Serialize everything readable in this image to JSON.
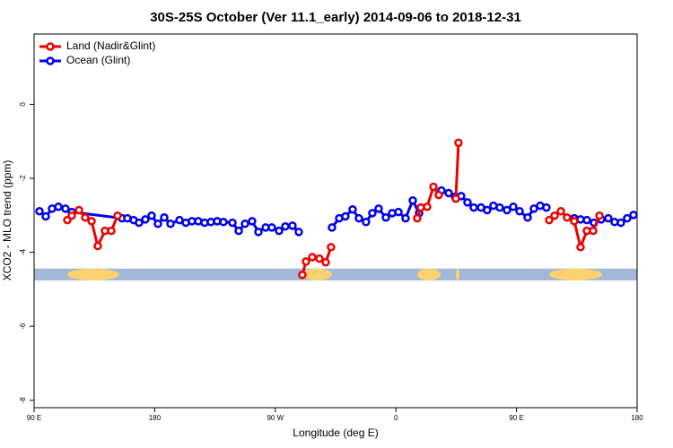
{
  "chart_data": {
    "type": "line",
    "title": "30S-25S October (Ver 11.1_early)   2014-09-06 to 2018-12-31",
    "x_label": "Longitude (deg E)",
    "y_label": "XCO2 - MLO trend (ppm)",
    "xlim": [
      90,
      540
    ],
    "ylim": [
      -8.2,
      1.9
    ],
    "xticks": [
      {
        "value": 90,
        "label": "90 E"
      },
      180,
      {
        "value": 270,
        "label": "90 W"
      },
      {
        "value": 360,
        "label": "0"
      },
      {
        "value": 450,
        "label": "90 E"
      },
      {
        "value": 540,
        "label": "180"
      }
    ],
    "yticks": [
      0,
      -2,
      -4,
      -6,
      -8
    ],
    "legend": "top-left",
    "band": {
      "y": [
        -4.76,
        -4.44
      ],
      "color": "#a3b8d6",
      "land_color": "#fad36e",
      "land": [
        [
          114.8,
          153.6
        ],
        [
          290.2,
          312.3
        ],
        [
          376.0,
          393.4
        ],
        [
          404.7,
          407.4
        ],
        [
          474.4,
          513.9
        ]
      ]
    },
    "series": [
      {
        "name": "Land (Nadir&Glint)",
        "color": "#ee0000",
        "x": [
          114.8,
          118.1,
          123.5,
          128.2,
          132.9,
          137.5,
          142.9,
          147.6,
          152.3,
          null,
          290.2,
          292.9,
          297.6,
          302.9,
          307.6,
          311.6,
          null,
          375.9,
          378.6,
          383.3,
          388.0,
          392.0,
          null,
          404.7,
          406.7,
          null,
          474.4,
          478.4,
          483.1,
          487.7,
          493.1,
          497.8,
          502.5,
          507.2,
          511.9
        ],
        "values": [
          -3.13,
          -3.01,
          -2.86,
          -3.06,
          -3.16,
          -3.83,
          -3.42,
          -3.42,
          -3.01,
          null,
          -4.61,
          -4.25,
          -4.13,
          -4.17,
          -4.27,
          -3.86,
          null,
          -3.08,
          -2.79,
          -2.77,
          -2.23,
          -2.45,
          null,
          -2.55,
          -1.04,
          null,
          -3.13,
          -3.01,
          -2.89,
          -3.06,
          -3.16,
          -3.86,
          -3.42,
          -3.42,
          -3.01
        ]
      },
      {
        "name": "Ocean (Glint)",
        "color": "#0000ee",
        "x": [
          94.0,
          98.7,
          103.4,
          108.1,
          113.4,
          118.1,
          155.6,
          159.6,
          164.3,
          168.3,
          173.0,
          177.7,
          182.4,
          187.1,
          191.8,
          198.5,
          203.2,
          207.8,
          212.5,
          217.2,
          221.9,
          226.6,
          231.3,
          238.0,
          242.7,
          247.4,
          252.7,
          257.4,
          262.8,
          267.4,
          272.8,
          277.5,
          282.8,
          287.5,
          null,
          312.3,
          317.7,
          322.3,
          327.7,
          332.4,
          337.7,
          342.4,
          347.1,
          352.5,
          357.2,
          361.9,
          367.2,
          372.6,
          377.3,
          null,
          394.0,
          399.4,
          404.1,
          408.7,
          413.4,
          418.1,
          423.5,
          428.1,
          432.8,
          437.5,
          442.9,
          447.6,
          452.3,
          458.3,
          463.0,
          467.7,
          472.3,
          null,
          493.1,
          497.8,
          502.5,
          507.8,
          513.2,
          518.5,
          523.2,
          527.9,
          532.6,
          537.3
        ],
        "values": [
          -2.89,
          -3.03,
          -2.82,
          -2.77,
          -2.82,
          -2.91,
          -3.08,
          -3.08,
          -3.13,
          -3.2,
          -3.11,
          -3.01,
          -3.23,
          -3.06,
          -3.23,
          -3.13,
          -3.2,
          -3.16,
          -3.16,
          -3.2,
          -3.18,
          -3.16,
          -3.18,
          -3.2,
          -3.42,
          -3.23,
          -3.16,
          -3.45,
          -3.33,
          -3.33,
          -3.42,
          -3.3,
          -3.28,
          -3.45,
          null,
          -3.33,
          -3.08,
          -3.03,
          -2.84,
          -3.08,
          -3.18,
          -2.94,
          -2.82,
          -3.06,
          -2.94,
          -2.91,
          -3.08,
          -2.6,
          -2.94,
          null,
          -2.33,
          -2.4,
          -2.5,
          -2.48,
          -2.65,
          -2.79,
          -2.79,
          -2.86,
          -2.74,
          -2.79,
          -2.86,
          -2.77,
          -2.89,
          -3.06,
          -2.82,
          -2.74,
          -2.79,
          null,
          -3.08,
          -3.11,
          -3.13,
          -3.2,
          -3.11,
          -3.08,
          -3.18,
          -3.2,
          -3.08,
          -2.99
        ]
      }
    ]
  }
}
